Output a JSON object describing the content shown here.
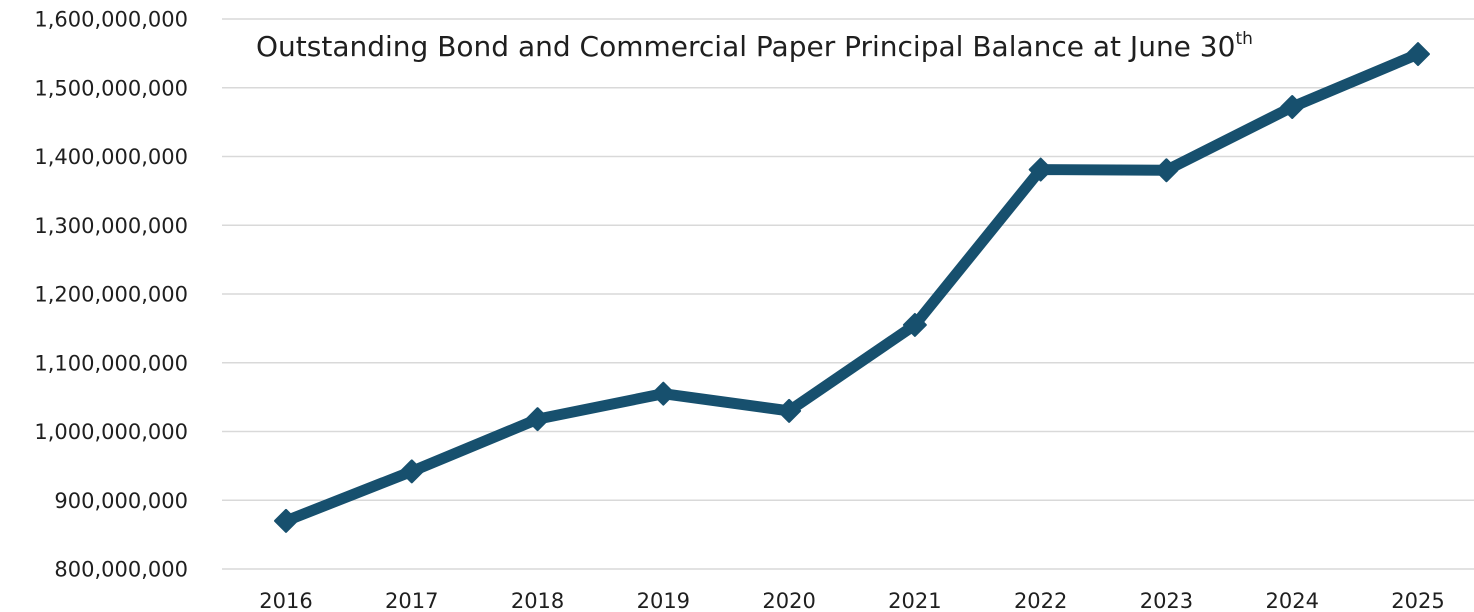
{
  "chart_data": {
    "type": "line",
    "title": "Outstanding Bond and Commercial Paper Principal Balance at June 30",
    "title_superscript": "th",
    "xlabel": "",
    "ylabel": "",
    "categories": [
      "2016",
      "2017",
      "2018",
      "2019",
      "2020",
      "2021",
      "2022",
      "2023",
      "2024",
      "2025"
    ],
    "series": [
      {
        "values": [
          870000000,
          942000000,
          1018000000,
          1055000000,
          1030000000,
          1155000000,
          1381000000,
          1380000000,
          1472000000,
          1549000000
        ]
      }
    ],
    "ylim": [
      800000000,
      1600000000
    ],
    "y_ticks": [
      800000000,
      900000000,
      1000000000,
      1100000000,
      1200000000,
      1300000000,
      1400000000,
      1500000000,
      1600000000
    ],
    "y_tick_labels": [
      "800,000,000",
      "900,000,000",
      "1,000,000,000",
      "1,100,000,000",
      "1,200,000,000",
      "1,300,000,000",
      "1,400,000,000",
      "1,500,000,000",
      "1,600,000,000"
    ],
    "grid": true,
    "legend": "none",
    "line_color": "#17506e",
    "marker": "diamond"
  }
}
